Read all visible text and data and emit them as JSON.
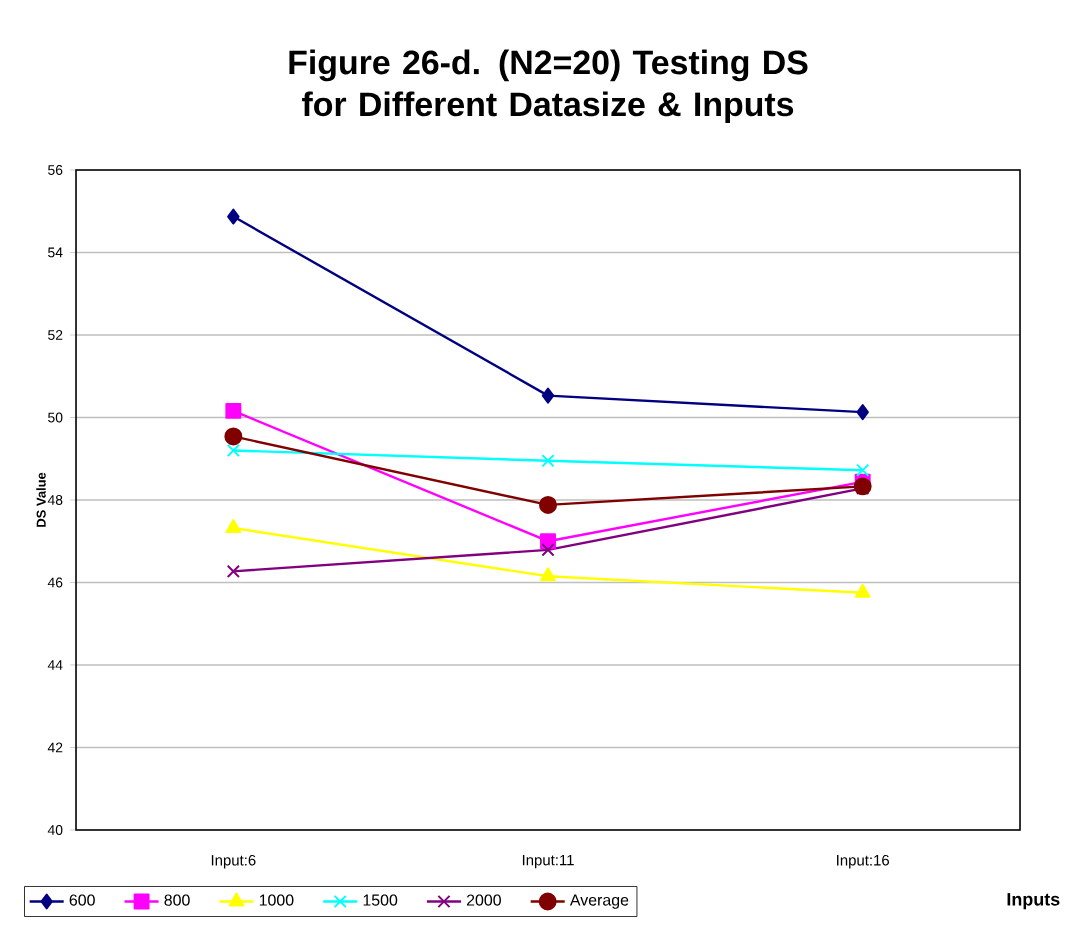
{
  "chart_data": {
    "type": "line",
    "title": "Figure 26-d. (N2=20) Testing DS for Different Datasize & Inputs",
    "xlabel": "Inputs",
    "ylabel": "DS Value",
    "categories": [
      "Input:6",
      "Input:11",
      "Input:16"
    ],
    "series": [
      {
        "name": "600",
        "color": "#000080",
        "marker": "diamond",
        "values": [
          54.87,
          50.53,
          50.13
        ]
      },
      {
        "name": "800",
        "color": "#ff00ff",
        "marker": "square",
        "values": [
          50.16,
          47.0,
          48.44
        ]
      },
      {
        "name": "1000",
        "color": "#ffff00",
        "marker": "triangle",
        "values": [
          47.32,
          46.15,
          45.75
        ]
      },
      {
        "name": "1500",
        "color": "#00ffff",
        "marker": "cross",
        "values": [
          49.2,
          48.95,
          48.72
        ]
      },
      {
        "name": "2000",
        "color": "#800080",
        "marker": "cross",
        "values": [
          46.27,
          46.79,
          48.28
        ]
      },
      {
        "name": "Average",
        "color": "#800000",
        "marker": "circle",
        "values": [
          49.54,
          47.88,
          48.33
        ]
      }
    ],
    "ylim": [
      40,
      56
    ],
    "yticks": [
      40,
      42,
      44,
      46,
      48,
      50,
      52,
      54,
      56
    ],
    "grid": "y",
    "legend": "bottom",
    "line_style": "solid"
  }
}
